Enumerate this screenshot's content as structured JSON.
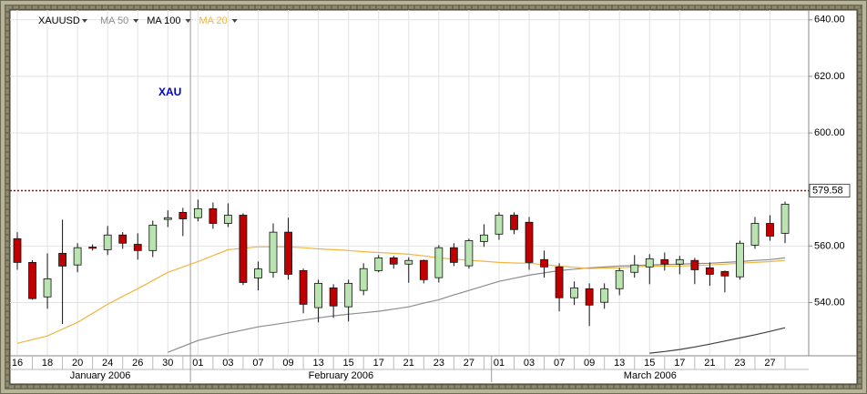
{
  "chart_data": {
    "type": "candlestick",
    "symbol": "XAUUSD",
    "annotation": "XAU",
    "categories": [
      "16",
      null,
      "18",
      null,
      "20",
      null,
      "24",
      null,
      "26",
      null,
      "30",
      null,
      "01",
      null,
      "03",
      null,
      "07",
      null,
      "09",
      null,
      "13",
      null,
      "15",
      null,
      "17",
      null,
      "21",
      null,
      "23",
      null,
      "27",
      null,
      "01",
      null,
      "03",
      null,
      "07",
      null,
      "09",
      null,
      "13",
      null,
      "15",
      null,
      "17",
      null,
      "21",
      null,
      "23",
      null,
      "27",
      null
    ],
    "month_labels": [
      "January 2006",
      "February 2006",
      "March 2006"
    ],
    "open": [
      562.6,
      554.2,
      542.0,
      557.4,
      553.3,
      559.6,
      558.7,
      563.9,
      560.6,
      558.4,
      569.4,
      571.9,
      570.0,
      573.2,
      568.0,
      570.9,
      548.7,
      550.7,
      564.9,
      551.3,
      538.2,
      545.2,
      538.5,
      544.3,
      551.3,
      555.8,
      553.6,
      554.9,
      548.8,
      559.4,
      553.0,
      561.6,
      564.2,
      570.9,
      568.4,
      555.2,
      552.6,
      541.7,
      544.9,
      540.1,
      544.9,
      550.7,
      552.6,
      555.2,
      553.6,
      554.9,
      552.3,
      551.0,
      549.1,
      560.3,
      568.0,
      564.5
    ],
    "high": [
      564.9,
      555.0,
      557.4,
      569.3,
      561.0,
      560.6,
      567.1,
      564.9,
      564.5,
      569.0,
      572.6,
      573.5,
      576.4,
      575.4,
      575.1,
      571.6,
      554.5,
      568.0,
      570.0,
      552.0,
      548.1,
      546.5,
      548.1,
      553.9,
      556.8,
      556.5,
      556.0,
      555.2,
      560.3,
      561.0,
      562.6,
      567.7,
      571.9,
      571.9,
      570.3,
      558.4,
      553.9,
      547.5,
      546.8,
      546.8,
      552.3,
      556.8,
      557.1,
      557.7,
      556.5,
      555.8,
      554.2,
      551.3,
      561.9,
      570.3,
      570.9,
      575.7
    ],
    "low": [
      551.6,
      541.0,
      537.8,
      532.4,
      550.7,
      558.4,
      556.8,
      559.0,
      555.2,
      556.1,
      566.7,
      563.5,
      568.7,
      566.1,
      566.7,
      546.2,
      544.3,
      548.8,
      548.1,
      536.2,
      533.0,
      534.6,
      533.3,
      542.6,
      550.7,
      552.0,
      547.0,
      546.8,
      547.1,
      552.9,
      552.0,
      559.7,
      562.2,
      564.2,
      551.6,
      548.8,
      536.9,
      539.1,
      531.7,
      537.8,
      542.6,
      548.8,
      546.5,
      551.3,
      550.0,
      546.5,
      545.9,
      543.6,
      548.1,
      559.0,
      561.9,
      561.0
    ],
    "close": [
      554.2,
      541.4,
      548.4,
      552.9,
      559.4,
      559.2,
      563.9,
      561.0,
      558.4,
      567.4,
      570.0,
      569.6,
      573.2,
      568.0,
      570.9,
      547.1,
      551.9,
      564.9,
      550.0,
      539.4,
      546.8,
      538.8,
      546.8,
      552.0,
      555.8,
      553.6,
      554.9,
      548.1,
      559.4,
      554.2,
      561.9,
      563.9,
      570.9,
      565.8,
      554.2,
      552.6,
      541.7,
      545.2,
      539.1,
      544.9,
      551.3,
      553.3,
      555.5,
      553.6,
      555.2,
      551.6,
      550.0,
      549.4,
      561.0,
      568.0,
      563.5,
      574.8
    ],
    "up_color": "#b9e3b0",
    "down_color": "#c00000",
    "series": [
      {
        "name": "MA 50",
        "color": "#8c8c8c",
        "values": [
          null,
          null,
          null,
          null,
          null,
          null,
          null,
          null,
          null,
          null,
          522.4,
          524.5,
          526.6,
          527.9,
          529.2,
          530.3,
          531.4,
          532.2,
          533.0,
          533.8,
          534.6,
          535.3,
          535.9,
          536.4,
          536.9,
          537.7,
          538.5,
          539.8,
          541.0,
          542.7,
          544.3,
          545.9,
          547.5,
          548.6,
          549.7,
          550.5,
          551.3,
          551.8,
          552.3,
          552.6,
          552.9,
          553.1,
          553.3,
          553.5,
          553.6,
          553.8,
          553.9,
          554.2,
          554.5,
          554.9,
          555.2,
          555.8
        ]
      },
      {
        "name": "MA 100",
        "color": "#404040",
        "values": [
          null,
          null,
          null,
          null,
          null,
          null,
          null,
          null,
          null,
          null,
          null,
          null,
          null,
          null,
          null,
          null,
          null,
          null,
          null,
          null,
          null,
          null,
          null,
          null,
          null,
          null,
          null,
          null,
          null,
          null,
          null,
          null,
          null,
          null,
          null,
          null,
          null,
          null,
          null,
          null,
          null,
          null,
          522.1,
          522.7,
          523.4,
          524.3,
          525.3,
          526.4,
          527.5,
          528.6,
          529.8,
          531.1
        ]
      },
      {
        "name": "MA 20",
        "color": "#f0b640",
        "values": [
          525.6,
          526.9,
          528.2,
          530.6,
          533.0,
          536.2,
          539.4,
          542.2,
          544.9,
          547.8,
          550.7,
          552.6,
          554.5,
          556.6,
          558.7,
          559.2,
          559.7,
          559.7,
          559.7,
          559.4,
          559.0,
          558.7,
          558.4,
          558.0,
          557.7,
          557.4,
          557.1,
          556.5,
          555.8,
          555.4,
          554.9,
          554.6,
          554.2,
          554.0,
          553.9,
          553.4,
          552.9,
          552.5,
          552.0,
          552.2,
          552.3,
          552.6,
          552.9,
          552.9,
          552.9,
          553.1,
          553.3,
          553.6,
          553.9,
          554.2,
          554.5,
          554.9
        ]
      }
    ],
    "last_price": 579.58,
    "last_price_color": "#b00000",
    "ylim": [
      521.5,
      642.5
    ],
    "yticks": [
      {
        "value": 540,
        "label": "540.00"
      },
      {
        "value": 560,
        "label": "560.00"
      },
      {
        "value": 600,
        "label": "600.00"
      },
      {
        "value": 620,
        "label": "620.00"
      },
      {
        "value": 640,
        "label": "640.00"
      }
    ],
    "grid": true
  }
}
